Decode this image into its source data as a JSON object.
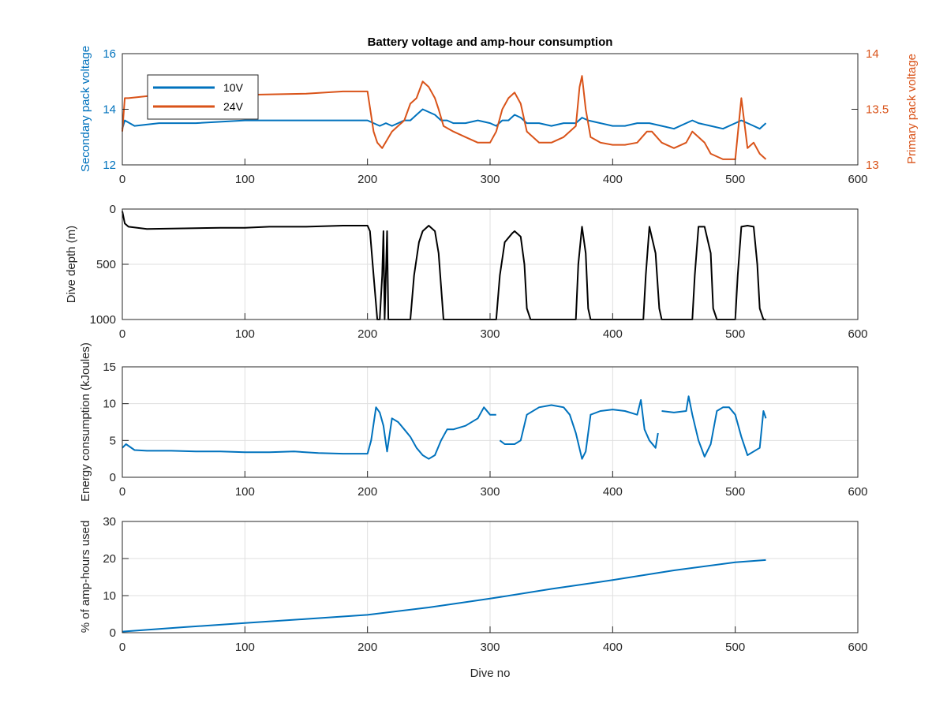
{
  "colors": {
    "blue": "#0072BD",
    "orange": "#D95319",
    "black": "#000000",
    "axis": "#262626",
    "grid": "#DFDFDF"
  },
  "chart_data": [
    {
      "type": "line",
      "title": "Battery voltage and amp-hour consumption",
      "xlabel": "",
      "xlim": [
        0,
        600
      ],
      "xticks": [
        "0",
        "100",
        "200",
        "300",
        "400",
        "500",
        "600"
      ],
      "ylabel_left": "Secondary pack voltage",
      "ylim_left": [
        12,
        16
      ],
      "yticks_left": [
        "12",
        "14",
        "16"
      ],
      "ylabel_right": "Primary pack voltage",
      "ylim_right": [
        13,
        14
      ],
      "yticks_right": [
        "13",
        "13.5",
        "14"
      ],
      "grid": false,
      "legend": {
        "placement": "top-left",
        "entries": [
          "10V",
          "24V"
        ]
      },
      "series": [
        {
          "name": "10V",
          "axis": "left",
          "color": "#0072BD",
          "x": [
            0,
            2,
            10,
            30,
            60,
            100,
            150,
            200,
            205,
            210,
            215,
            220,
            225,
            230,
            235,
            240,
            245,
            250,
            255,
            260,
            265,
            270,
            280,
            290,
            300,
            305,
            310,
            315,
            320,
            325,
            330,
            340,
            350,
            360,
            370,
            375,
            380,
            390,
            400,
            410,
            420,
            430,
            440,
            450,
            460,
            465,
            470,
            480,
            490,
            500,
            505,
            510,
            515,
            520,
            525
          ],
          "y": [
            13.3,
            13.6,
            13.4,
            13.5,
            13.5,
            13.6,
            13.6,
            13.6,
            13.5,
            13.4,
            13.5,
            13.4,
            13.5,
            13.6,
            13.6,
            13.8,
            14.0,
            13.9,
            13.8,
            13.6,
            13.6,
            13.5,
            13.5,
            13.6,
            13.5,
            13.4,
            13.6,
            13.6,
            13.8,
            13.7,
            13.5,
            13.5,
            13.4,
            13.5,
            13.5,
            13.7,
            13.6,
            13.5,
            13.4,
            13.4,
            13.5,
            13.5,
            13.4,
            13.3,
            13.5,
            13.6,
            13.5,
            13.4,
            13.3,
            13.5,
            13.6,
            13.5,
            13.4,
            13.3,
            13.5
          ]
        },
        {
          "name": "24V",
          "axis": "right",
          "color": "#D95319",
          "x": [
            0,
            2,
            5,
            30,
            60,
            100,
            150,
            180,
            200,
            205,
            208,
            212,
            220,
            230,
            235,
            240,
            245,
            250,
            255,
            258,
            262,
            270,
            280,
            290,
            300,
            305,
            310,
            315,
            320,
            325,
            330,
            340,
            350,
            360,
            370,
            373,
            375,
            378,
            382,
            390,
            400,
            410,
            420,
            428,
            432,
            440,
            450,
            460,
            465,
            470,
            475,
            480,
            490,
            500,
            505,
            510,
            515,
            520,
            525
          ],
          "y": [
            13.3,
            13.6,
            13.6,
            13.63,
            13.62,
            13.63,
            13.64,
            13.66,
            13.66,
            13.3,
            13.2,
            13.15,
            13.3,
            13.4,
            13.55,
            13.6,
            13.75,
            13.7,
            13.6,
            13.5,
            13.35,
            13.3,
            13.25,
            13.2,
            13.2,
            13.3,
            13.5,
            13.6,
            13.65,
            13.55,
            13.3,
            13.2,
            13.2,
            13.25,
            13.35,
            13.7,
            13.8,
            13.5,
            13.25,
            13.2,
            13.18,
            13.18,
            13.2,
            13.3,
            13.3,
            13.2,
            13.15,
            13.2,
            13.3,
            13.25,
            13.2,
            13.1,
            13.05,
            13.05,
            13.6,
            13.15,
            13.2,
            13.1,
            13.05
          ]
        }
      ]
    },
    {
      "type": "line",
      "title": "",
      "xlabel": "",
      "xlim": [
        0,
        600
      ],
      "xticks": [
        "0",
        "100",
        "200",
        "300",
        "400",
        "500",
        "600"
      ],
      "ylabel": "Dive depth (m)",
      "ylim": [
        0,
        1000
      ],
      "y_reversed": true,
      "yticks": [
        "0",
        "500",
        "1000"
      ],
      "grid": true,
      "series": [
        {
          "color": "#000000",
          "x": [
            0,
            2,
            5,
            20,
            50,
            80,
            100,
            120,
            150,
            180,
            200,
            202,
            205,
            208,
            210,
            212,
            213,
            214,
            216,
            217,
            218,
            235,
            238,
            242,
            245,
            250,
            255,
            258,
            262,
            265,
            305,
            308,
            312,
            318,
            320,
            325,
            328,
            330,
            333,
            335,
            370,
            372,
            375,
            378,
            380,
            382,
            425,
            427,
            430,
            435,
            438,
            440,
            442,
            450,
            465,
            467,
            470,
            475,
            480,
            482,
            485,
            500,
            502,
            505,
            510,
            515,
            518,
            520,
            523,
            525
          ],
          "y": [
            20,
            130,
            160,
            180,
            175,
            170,
            170,
            160,
            160,
            150,
            150,
            200,
            600,
            1000,
            1000,
            600,
            200,
            1000,
            200,
            1000,
            1000,
            1000,
            600,
            300,
            200,
            150,
            200,
            400,
            1000,
            1000,
            1000,
            600,
            300,
            220,
            200,
            250,
            500,
            900,
            1000,
            1000,
            1000,
            500,
            160,
            400,
            900,
            1000,
            1000,
            600,
            160,
            400,
            900,
            1000,
            1000,
            1000,
            1000,
            600,
            160,
            160,
            400,
            900,
            1000,
            1000,
            600,
            160,
            150,
            160,
            500,
            900,
            1000,
            1000
          ]
        }
      ]
    },
    {
      "type": "line",
      "title": "",
      "xlabel": "",
      "xlim": [
        0,
        600
      ],
      "xticks": [
        "0",
        "100",
        "200",
        "300",
        "400",
        "500",
        "600"
      ],
      "ylabel": "Energy consumption (kJoules)",
      "ylim": [
        0,
        15
      ],
      "yticks": [
        "0",
        "5",
        "10",
        "15"
      ],
      "grid": true,
      "series": [
        {
          "color": "#0072BD",
          "x": [
            0,
            3,
            10,
            20,
            40,
            60,
            80,
            100,
            120,
            140,
            160,
            180,
            200,
            203,
            207,
            210,
            213,
            216,
            220,
            225,
            230,
            235,
            240,
            245,
            250,
            255,
            260,
            265,
            270,
            280,
            290,
            295,
            300,
            305
          ],
          "y": [
            4.0,
            4.5,
            3.7,
            3.6,
            3.6,
            3.5,
            3.5,
            3.4,
            3.4,
            3.5,
            3.3,
            3.2,
            3.2,
            5.0,
            9.5,
            8.8,
            7.0,
            3.5,
            8.0,
            7.5,
            6.5,
            5.5,
            4.0,
            3.0,
            2.5,
            3.0,
            5.0,
            6.5,
            6.5,
            7.0,
            8.0,
            9.5,
            8.5,
            8.5
          ]
        },
        {
          "color": "#0072BD",
          "x": [
            308,
            312,
            320,
            325,
            330,
            340,
            350,
            360,
            365,
            370,
            375,
            378,
            382,
            390,
            400,
            410,
            420,
            423,
            426,
            430,
            435,
            437
          ],
          "y": [
            5.0,
            4.5,
            4.5,
            5.0,
            8.5,
            9.5,
            9.8,
            9.5,
            8.5,
            6.0,
            2.5,
            3.5,
            8.5,
            9.0,
            9.2,
            9.0,
            8.5,
            10.5,
            6.5,
            5.0,
            4.0,
            6.0
          ]
        },
        {
          "color": "#0072BD",
          "x": [
            440,
            450,
            460,
            462,
            465,
            470,
            475,
            480,
            485,
            490,
            495,
            500,
            505,
            510,
            515,
            520,
            523,
            525
          ],
          "y": [
            9.0,
            8.8,
            9.0,
            11.0,
            8.5,
            5.0,
            2.8,
            4.5,
            9.0,
            9.5,
            9.5,
            8.5,
            5.5,
            3.0,
            3.5,
            4.0,
            9.0,
            8.0
          ]
        }
      ]
    },
    {
      "type": "line",
      "title": "",
      "xlabel": "Dive no",
      "xlim": [
        0,
        600
      ],
      "xticks": [
        "0",
        "100",
        "200",
        "300",
        "400",
        "500",
        "600"
      ],
      "ylabel": "% of amp-hours used",
      "ylim": [
        0,
        30
      ],
      "yticks": [
        "0",
        "10",
        "20",
        "30"
      ],
      "grid": true,
      "series": [
        {
          "color": "#0072BD",
          "x": [
            0,
            50,
            100,
            150,
            200,
            250,
            300,
            350,
            400,
            450,
            500,
            525
          ],
          "y": [
            0.3,
            1.5,
            2.6,
            3.7,
            4.8,
            6.8,
            9.2,
            11.8,
            14.2,
            16.8,
            19.0,
            19.6
          ]
        }
      ]
    }
  ]
}
